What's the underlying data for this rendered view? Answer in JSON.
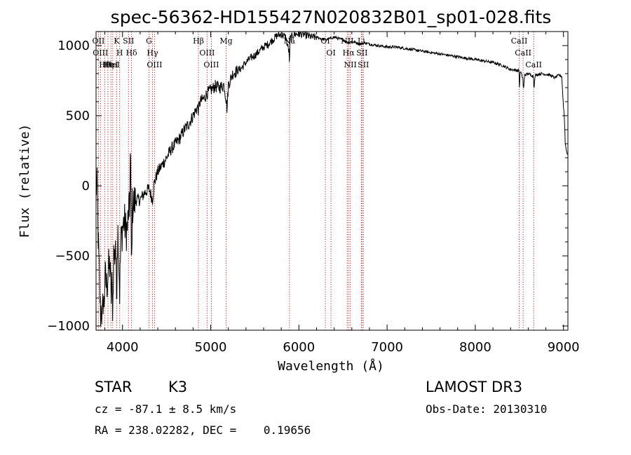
{
  "chart_data": {
    "type": "line",
    "title": "spec-56362-HD155427N020832B01_sp01-028.fits",
    "xlabel": "Wavelength (Å)",
    "ylabel": "Flux (relative)",
    "xlim": [
      3700,
      9050
    ],
    "ylim": [
      -1030,
      1100
    ],
    "xticks": [
      4000,
      5000,
      6000,
      7000,
      8000,
      9000
    ],
    "yticks": [
      -1000,
      -500,
      0,
      500,
      1000
    ],
    "series": [
      {
        "name": "flux",
        "anchors": [
          [
            3700,
            -20
          ],
          [
            3710,
            10
          ],
          [
            3715,
            -60
          ],
          [
            3720,
            -250
          ],
          [
            3730,
            -500
          ],
          [
            3740,
            -700
          ],
          [
            3750,
            -920
          ],
          [
            3760,
            -850
          ],
          [
            3770,
            -980
          ],
          [
            3780,
            -800
          ],
          [
            3790,
            -870
          ],
          [
            3800,
            -650
          ],
          [
            3820,
            -720
          ],
          [
            3840,
            -600
          ],
          [
            3860,
            -560
          ],
          [
            3870,
            -800
          ],
          [
            3880,
            -720
          ],
          [
            3890,
            -880
          ],
          [
            3900,
            -480
          ],
          [
            3910,
            -520
          ],
          [
            3920,
            -360
          ],
          [
            3933,
            -820
          ],
          [
            3940,
            -450
          ],
          [
            3950,
            -300
          ],
          [
            3968,
            -760
          ],
          [
            3980,
            -420
          ],
          [
            4000,
            -300
          ],
          [
            4020,
            -250
          ],
          [
            4040,
            -330
          ],
          [
            4060,
            -280
          ],
          [
            4070,
            -150
          ],
          [
            4080,
            -220
          ],
          [
            4090,
            320
          ],
          [
            4095,
            -100
          ],
          [
            4102,
            -680
          ],
          [
            4110,
            -150
          ],
          [
            4150,
            -100
          ],
          [
            4200,
            -100
          ],
          [
            4250,
            -50
          ],
          [
            4300,
            -20
          ],
          [
            4330,
            -80
          ],
          [
            4340,
            -100
          ],
          [
            4360,
            20
          ],
          [
            4400,
            100
          ],
          [
            4450,
            150
          ],
          [
            4500,
            200
          ],
          [
            4550,
            260
          ],
          [
            4600,
            300
          ],
          [
            4650,
            340
          ],
          [
            4700,
            400
          ],
          [
            4750,
            440
          ],
          [
            4800,
            500
          ],
          [
            4850,
            560
          ],
          [
            4861,
            540
          ],
          [
            4880,
            600
          ],
          [
            4920,
            620
          ],
          [
            4960,
            660
          ],
          [
            5000,
            680
          ],
          [
            5050,
            710
          ],
          [
            5100,
            700
          ],
          [
            5150,
            720
          ],
          [
            5172,
            630
          ],
          [
            5185,
            550
          ],
          [
            5200,
            720
          ],
          [
            5250,
            800
          ],
          [
            5300,
            820
          ],
          [
            5350,
            840
          ],
          [
            5400,
            880
          ],
          [
            5450,
            910
          ],
          [
            5500,
            930
          ],
          [
            5550,
            960
          ],
          [
            5600,
            990
          ],
          [
            5650,
            1010
          ],
          [
            5700,
            1040
          ],
          [
            5750,
            1070
          ],
          [
            5800,
            1080
          ],
          [
            5850,
            1060
          ],
          [
            5890,
            950
          ],
          [
            5894,
            840
          ],
          [
            5900,
            1050
          ],
          [
            5950,
            1080
          ],
          [
            6000,
            1085
          ],
          [
            6050,
            1080
          ],
          [
            6100,
            1070
          ],
          [
            6150,
            1060
          ],
          [
            6200,
            1060
          ],
          [
            6250,
            1050
          ],
          [
            6300,
            1040
          ],
          [
            6350,
            1050
          ],
          [
            6400,
            1060
          ],
          [
            6450,
            1050
          ],
          [
            6500,
            1040
          ],
          [
            6563,
            1020
          ],
          [
            6600,
            1030
          ],
          [
            6650,
            1020
          ],
          [
            6700,
            1010
          ],
          [
            6750,
            1020
          ],
          [
            6800,
            1010
          ],
          [
            6900,
            1000
          ],
          [
            7000,
            990
          ],
          [
            7100,
            990
          ],
          [
            7200,
            980
          ],
          [
            7300,
            970
          ],
          [
            7400,
            960
          ],
          [
            7500,
            950
          ],
          [
            7600,
            940
          ],
          [
            7700,
            930
          ],
          [
            7800,
            920
          ],
          [
            7900,
            910
          ],
          [
            8000,
            900
          ],
          [
            8100,
            890
          ],
          [
            8200,
            880
          ],
          [
            8300,
            860
          ],
          [
            8400,
            830
          ],
          [
            8498,
            820
          ],
          [
            8500,
            700
          ],
          [
            8510,
            820
          ],
          [
            8542,
            760
          ],
          [
            8545,
            680
          ],
          [
            8560,
            790
          ],
          [
            8600,
            800
          ],
          [
            8662,
            780
          ],
          [
            8665,
            690
          ],
          [
            8680,
            790
          ],
          [
            8750,
            800
          ],
          [
            8850,
            790
          ],
          [
            8900,
            770
          ],
          [
            8950,
            790
          ],
          [
            8980,
            780
          ],
          [
            9000,
            560
          ],
          [
            9010,
            500
          ],
          [
            9020,
            300
          ],
          [
            9035,
            250
          ],
          [
            9045,
            220
          ]
        ]
      }
    ],
    "line_ids": [
      {
        "x": 3727,
        "label": "OII"
      },
      {
        "x": 3750,
        "label": "OIII"
      },
      {
        "x": 3798,
        "label": "Hθ"
      },
      {
        "x": 3835,
        "label": "Hη"
      },
      {
        "x": 3869,
        "label": "HeI"
      },
      {
        "x": 3889,
        "label": "HeI"
      },
      {
        "x": 3933,
        "label": "K"
      },
      {
        "x": 3968,
        "label": "H"
      },
      {
        "x": 4068,
        "label": "SII"
      },
      {
        "x": 4102,
        "label": "Hδ"
      },
      {
        "x": 4300,
        "label": "G"
      },
      {
        "x": 4340,
        "label": "Hγ"
      },
      {
        "x": 4363,
        "label": "OIII"
      },
      {
        "x": 4861,
        "label": "Hβ"
      },
      {
        "x": 4959,
        "label": "OIII"
      },
      {
        "x": 5007,
        "label": "OIII"
      },
      {
        "x": 5175,
        "label": "Mg"
      },
      {
        "x": 5893,
        "label": "Na"
      },
      {
        "x": 6300,
        "label": "OI"
      },
      {
        "x": 6364,
        "label": "OI"
      },
      {
        "x": 6548,
        "label": "NII"
      },
      {
        "x": 6563,
        "label": "Hα"
      },
      {
        "x": 6583,
        "label": "NII"
      },
      {
        "x": 6708,
        "label": "Li"
      },
      {
        "x": 6716,
        "label": "SII"
      },
      {
        "x": 6731,
        "label": "SII"
      },
      {
        "x": 8498,
        "label": "CaII"
      },
      {
        "x": 8542,
        "label": "CaII"
      },
      {
        "x": 8662,
        "label": "CaII"
      }
    ]
  },
  "info": {
    "class_label": "STAR",
    "subclass": "K3",
    "survey": "LAMOST DR3",
    "cz": "cz = -87.1 ± 8.5 km/s",
    "obs_date": "Obs-Date: 20130310",
    "radec": "RA = 238.02282, DEC =    0.19656"
  },
  "colors": {
    "line": "#000000",
    "marker": "#b22222",
    "background": "#ffffff"
  }
}
